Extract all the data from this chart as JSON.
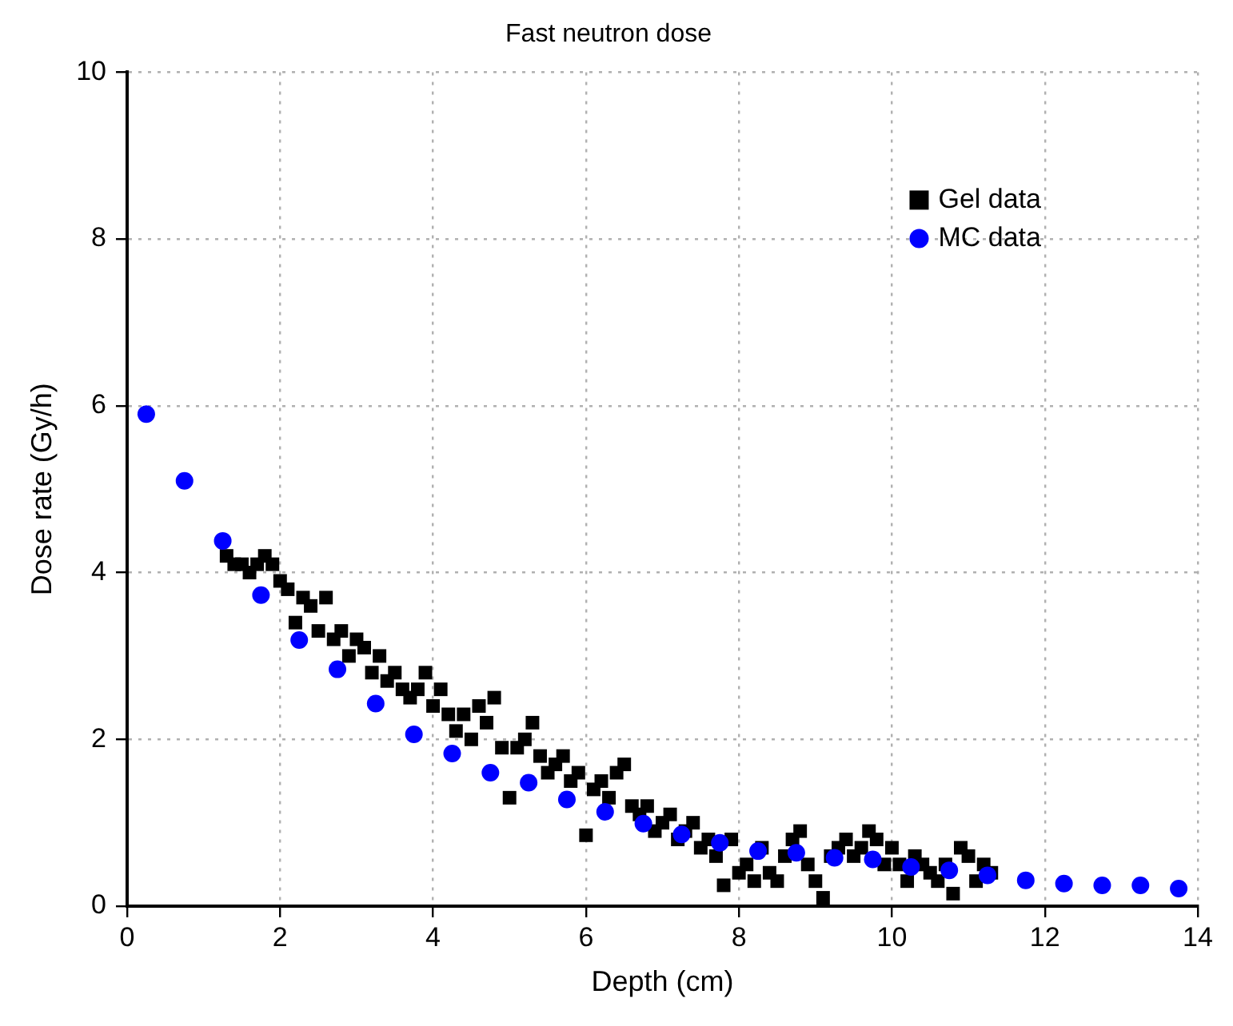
{
  "chart_data": {
    "type": "scatter",
    "title": "Fast neutron dose",
    "xlabel": "Depth (cm)",
    "ylabel": "Dose rate (Gy/h)",
    "xlim": [
      0,
      14
    ],
    "xticks": [
      0,
      2,
      4,
      6,
      8,
      10,
      12,
      14
    ],
    "ylim": [
      0,
      10
    ],
    "yticks": [
      0,
      2,
      4,
      6,
      8,
      10
    ],
    "grid": true,
    "legend": "top right",
    "series": [
      {
        "name": "Gel data",
        "color": "#000000",
        "marker": "square",
        "x": [
          1.3,
          1.4,
          1.5,
          1.6,
          1.7,
          1.8,
          1.9,
          2.0,
          2.1,
          2.2,
          2.3,
          2.4,
          2.5,
          2.6,
          2.7,
          2.8,
          2.9,
          3.0,
          3.1,
          3.2,
          3.3,
          3.4,
          3.5,
          3.6,
          3.7,
          3.8,
          3.9,
          4.0,
          4.1,
          4.2,
          4.3,
          4.4,
          4.5,
          4.6,
          4.7,
          4.8,
          4.9,
          5.0,
          5.1,
          5.2,
          5.3,
          5.4,
          5.5,
          5.6,
          5.7,
          5.8,
          5.9,
          6.0,
          6.1,
          6.2,
          6.3,
          6.4,
          6.5,
          6.6,
          6.7,
          6.8,
          6.9,
          7.0,
          7.1,
          7.2,
          7.3,
          7.4,
          7.5,
          7.6,
          7.7,
          7.8,
          7.9,
          8.0,
          8.1,
          8.2,
          8.3,
          8.4,
          8.5,
          8.6,
          8.7,
          8.8,
          8.9,
          9.0,
          9.1,
          9.2,
          9.3,
          9.4,
          9.5,
          9.6,
          9.7,
          9.8,
          9.9,
          10.0,
          10.1,
          10.2,
          10.3,
          10.4,
          10.5,
          10.6,
          10.7,
          10.8,
          10.9,
          11.0,
          11.1,
          11.2,
          11.3
        ],
        "values": [
          4.2,
          4.1,
          4.1,
          4.0,
          4.1,
          4.2,
          4.1,
          3.9,
          3.8,
          3.4,
          3.7,
          3.6,
          3.3,
          3.7,
          3.2,
          3.3,
          3.0,
          3.2,
          3.1,
          2.8,
          3.0,
          2.7,
          2.8,
          2.6,
          2.5,
          2.6,
          2.8,
          2.4,
          2.6,
          2.3,
          2.1,
          2.3,
          2.0,
          2.4,
          2.2,
          2.5,
          1.9,
          1.3,
          1.9,
          2.0,
          2.2,
          1.8,
          1.6,
          1.7,
          1.8,
          1.5,
          1.6,
          0.85,
          1.4,
          1.5,
          1.3,
          1.6,
          1.7,
          1.2,
          1.1,
          1.2,
          0.9,
          1.0,
          1.1,
          0.8,
          0.9,
          1.0,
          0.7,
          0.8,
          0.6,
          0.25,
          0.8,
          0.4,
          0.5,
          0.3,
          0.7,
          0.4,
          0.3,
          0.6,
          0.8,
          0.9,
          0.5,
          0.3,
          0.1,
          0.6,
          0.7,
          0.8,
          0.6,
          0.7,
          0.9,
          0.8,
          0.5,
          0.7,
          0.5,
          0.3,
          0.6,
          0.5,
          0.4,
          0.3,
          0.5,
          0.15,
          0.7,
          0.6,
          0.3,
          0.5,
          0.4
        ]
      },
      {
        "name": "MC data",
        "color": "#0000ff",
        "marker": "circle",
        "x": [
          0.25,
          0.75,
          1.25,
          1.75,
          2.25,
          2.75,
          3.25,
          3.75,
          4.25,
          4.75,
          5.25,
          5.75,
          6.25,
          6.75,
          7.25,
          7.75,
          8.25,
          8.75,
          9.25,
          9.75,
          10.25,
          10.75,
          11.25,
          11.75,
          12.25,
          12.75,
          13.25,
          13.75
        ],
        "values": [
          5.9,
          5.1,
          4.38,
          3.73,
          3.19,
          2.84,
          2.43,
          2.06,
          1.83,
          1.6,
          1.48,
          1.28,
          1.13,
          0.99,
          0.86,
          0.76,
          0.66,
          0.64,
          0.58,
          0.56,
          0.47,
          0.43,
          0.37,
          0.31,
          0.27,
          0.25,
          0.25,
          0.21
        ]
      }
    ]
  }
}
